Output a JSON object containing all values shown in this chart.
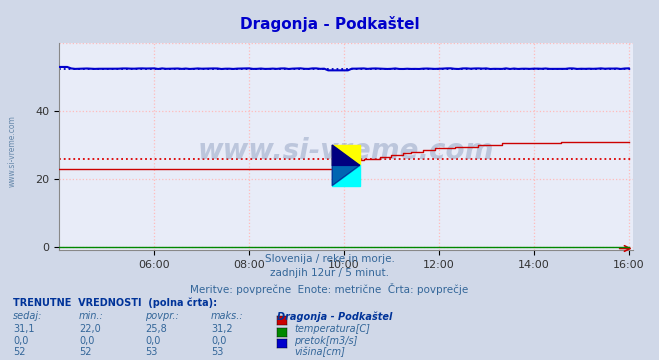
{
  "title": "Dragonja - Podkaštel",
  "title_color": "#0000cc",
  "bg_color": "#d0d8e8",
  "plot_bg_color": "#e8ecf8",
  "xlim": [
    0,
    145
  ],
  "ylim": [
    -1,
    60
  ],
  "yticks": [
    0,
    20,
    40
  ],
  "xtick_labels": [
    "06:00",
    "08:00",
    "10:00",
    "12:00",
    "14:00",
    "16:00"
  ],
  "xtick_positions": [
    24,
    48,
    72,
    96,
    120,
    144
  ],
  "grid_color": "#ffbbbb",
  "subtitle_lines": [
    "Slovenija / reke in morje.",
    "zadnjih 12ur / 5 minut.",
    "Meritve: povprečne  Enote: metrične  Črta: povprečje"
  ],
  "footer_title": "TRENUTNE  VREDNOSTI  (polna črta):",
  "footer_cols": [
    "sedaj:",
    "min.:",
    "povpr.:",
    "maks.:"
  ],
  "footer_station": "Dragonja - Podkaštel",
  "footer_data": [
    [
      "31,1",
      "22,0",
      "25,8",
      "31,2",
      "#cc0000",
      "temperatura[C]"
    ],
    [
      "0,0",
      "0,0",
      "0,0",
      "0,0",
      "#008800",
      "pretok[m3/s]"
    ],
    [
      "52",
      "52",
      "53",
      "53",
      "#0000cc",
      "višina[cm]"
    ]
  ],
  "watermark": "www.si-vreme.com",
  "temp_avg": 25.8,
  "height_avg": 52.5,
  "height_scale": 60,
  "temp_min": 22.0,
  "temp_max": 31.2
}
